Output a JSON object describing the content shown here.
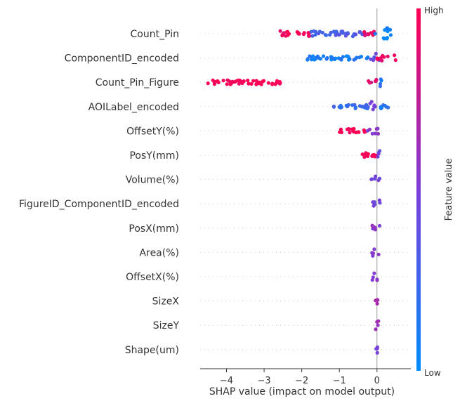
{
  "chart_data": {
    "type": "scatter",
    "subtype": "shap-beeswarm",
    "xlabel": "SHAP value (impact on model output)",
    "xlim": [
      -4.7,
      0.9
    ],
    "xticks": [
      -4,
      -3,
      -2,
      -1,
      0
    ],
    "xtick_labels": [
      "−4",
      "−3",
      "−2",
      "−1",
      "0"
    ],
    "zero_line": 0,
    "grid": false,
    "colorbar": {
      "label": "Feature value",
      "high_label": "High",
      "low_label": "Low",
      "low_color": "#008bfb",
      "mid_color": "#7c3fd9",
      "high_color": "#ff0052"
    },
    "features": [
      {
        "name": "Count_Pin",
        "segments": [
          {
            "x0": -2.6,
            "x1": -1.75,
            "v": 0.97,
            "h": 1.2
          },
          {
            "x0": -1.75,
            "x1": -0.3,
            "v": 0.3,
            "h": 1.2
          },
          {
            "x0": -0.45,
            "x1": -0.05,
            "v": 0.9,
            "h": 1.0
          },
          {
            "x0": -0.05,
            "x1": 0.4,
            "v": 0.05,
            "h": 2.8
          }
        ]
      },
      {
        "name": "ComponentID_encoded",
        "segments": [
          {
            "x0": -1.9,
            "x1": -0.2,
            "v": 0.1,
            "h": 0.9
          },
          {
            "x0": -0.2,
            "x1": 0.1,
            "v": 0.4,
            "h": 2.2
          },
          {
            "x0": 0.0,
            "x1": 0.5,
            "v": 0.95,
            "h": 1.3
          }
        ]
      },
      {
        "name": "Count_Pin_Figure",
        "segments": [
          {
            "x0": -4.5,
            "x1": -2.5,
            "v": 1.0,
            "h": 1.0
          },
          {
            "x0": -0.25,
            "x1": 0.0,
            "v": 0.85,
            "h": 1.2
          },
          {
            "x0": 0.0,
            "x1": 0.12,
            "v": 0.15,
            "h": 2.6
          }
        ]
      },
      {
        "name": "AOILabel_encoded",
        "segments": [
          {
            "x0": -1.15,
            "x1": -0.2,
            "v": 0.2,
            "h": 0.9
          },
          {
            "x0": -0.2,
            "x1": 0.05,
            "v": 0.5,
            "h": 2.2
          },
          {
            "x0": 0.05,
            "x1": 0.4,
            "v": 0.15,
            "h": 0.9
          }
        ]
      },
      {
        "name": "OffsetY(%)",
        "segments": [
          {
            "x0": -1.0,
            "x1": -0.25,
            "v": 1.0,
            "h": 1.0
          },
          {
            "x0": -0.25,
            "x1": 0.05,
            "v": 0.55,
            "h": 1.8
          }
        ]
      },
      {
        "name": "PosY(mm)",
        "segments": [
          {
            "x0": -0.5,
            "x1": 0.0,
            "v": 1.0,
            "h": 1.0
          },
          {
            "x0": 0.0,
            "x1": 0.08,
            "v": 0.4,
            "h": 2.2
          }
        ]
      },
      {
        "name": "Volume(%)",
        "segments": [
          {
            "x0": -0.15,
            "x1": 0.1,
            "v": 0.5,
            "h": 1.6
          }
        ]
      },
      {
        "name": "FigureID_ComponentID_encoded",
        "segments": [
          {
            "x0": -0.2,
            "x1": 0.08,
            "v": 0.45,
            "h": 1.6
          }
        ]
      },
      {
        "name": "PosX(mm)",
        "segments": [
          {
            "x0": -0.15,
            "x1": 0.08,
            "v": 0.55,
            "h": 1.6
          }
        ]
      },
      {
        "name": "Area(%)",
        "segments": [
          {
            "x0": -0.15,
            "x1": 0.08,
            "v": 0.55,
            "h": 1.6
          }
        ]
      },
      {
        "name": "OffsetX(%)",
        "segments": [
          {
            "x0": -0.15,
            "x1": 0.05,
            "v": 0.55,
            "h": 1.6
          }
        ]
      },
      {
        "name": "SizeX",
        "segments": [
          {
            "x0": -0.04,
            "x1": 0.04,
            "v": 0.7,
            "h": 2.0
          }
        ]
      },
      {
        "name": "SizeY",
        "segments": [
          {
            "x0": -0.04,
            "x1": 0.04,
            "v": 0.6,
            "h": 2.0
          }
        ]
      },
      {
        "name": "Shape(um)",
        "segments": [
          {
            "x0": -0.03,
            "x1": 0.03,
            "v": 0.45,
            "h": 2.0
          }
        ]
      }
    ]
  }
}
